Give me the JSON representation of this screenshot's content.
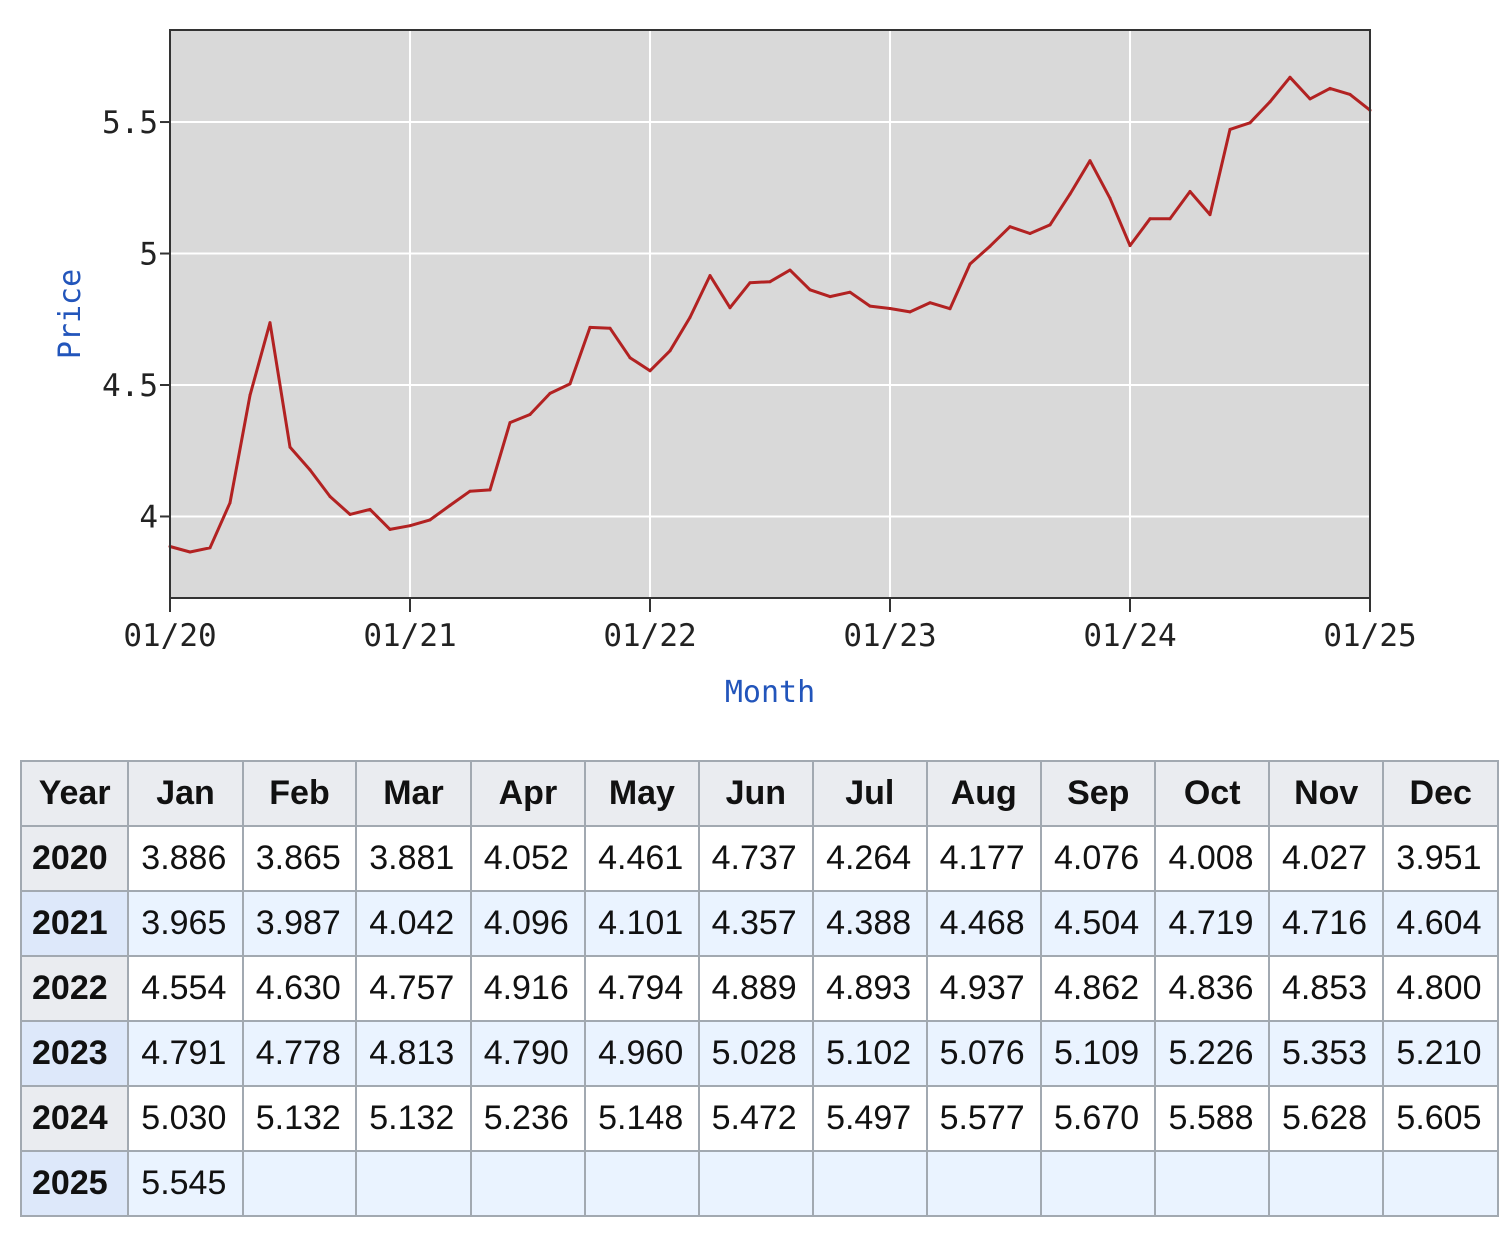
{
  "chart_data": {
    "type": "line",
    "xlabel": "Month",
    "ylabel": "Price",
    "x_tick_labels": [
      "01/20",
      "01/21",
      "01/22",
      "01/23",
      "01/24",
      "01/25"
    ],
    "y_tick_labels": [
      "4",
      "4.5",
      "5",
      "5.5"
    ],
    "y_ticks": [
      4,
      4.5,
      5,
      5.5
    ],
    "ylim": [
      3.69,
      5.85
    ],
    "xlim": [
      "2020-01",
      "2025-01"
    ],
    "grid": true,
    "line_color": "#b22222",
    "plot_background": "#d9d9d9",
    "series": [
      {
        "x": [
          "2020-01",
          "2020-02",
          "2020-03",
          "2020-04",
          "2020-05",
          "2020-06",
          "2020-07",
          "2020-08",
          "2020-09",
          "2020-10",
          "2020-11",
          "2020-12",
          "2021-01",
          "2021-02",
          "2021-03",
          "2021-04",
          "2021-05",
          "2021-06",
          "2021-07",
          "2021-08",
          "2021-09",
          "2021-10",
          "2021-11",
          "2021-12",
          "2022-01",
          "2022-02",
          "2022-03",
          "2022-04",
          "2022-05",
          "2022-06",
          "2022-07",
          "2022-08",
          "2022-09",
          "2022-10",
          "2022-11",
          "2022-12",
          "2023-01",
          "2023-02",
          "2023-03",
          "2023-04",
          "2023-05",
          "2023-06",
          "2023-07",
          "2023-08",
          "2023-09",
          "2023-10",
          "2023-11",
          "2023-12",
          "2024-01",
          "2024-02",
          "2024-03",
          "2024-04",
          "2024-05",
          "2024-06",
          "2024-07",
          "2024-08",
          "2024-09",
          "2024-10",
          "2024-11",
          "2024-12",
          "2025-01"
        ],
        "values": [
          3.886,
          3.865,
          3.881,
          4.052,
          4.461,
          4.737,
          4.264,
          4.177,
          4.076,
          4.008,
          4.027,
          3.951,
          3.965,
          3.987,
          4.042,
          4.096,
          4.101,
          4.357,
          4.388,
          4.468,
          4.504,
          4.719,
          4.716,
          4.604,
          4.554,
          4.63,
          4.757,
          4.916,
          4.794,
          4.889,
          4.893,
          4.937,
          4.862,
          4.836,
          4.853,
          4.8,
          4.791,
          4.778,
          4.813,
          4.79,
          4.96,
          5.028,
          5.102,
          5.076,
          5.109,
          5.226,
          5.353,
          5.21,
          5.03,
          5.132,
          5.132,
          5.236,
          5.148,
          5.472,
          5.497,
          5.577,
          5.67,
          5.588,
          5.628,
          5.605,
          5.545
        ]
      }
    ]
  },
  "table": {
    "headers": [
      "Year",
      "Jan",
      "Feb",
      "Mar",
      "Apr",
      "May",
      "Jun",
      "Jul",
      "Aug",
      "Sep",
      "Oct",
      "Nov",
      "Dec"
    ],
    "rows": [
      {
        "year": "2020",
        "values": [
          "3.886",
          "3.865",
          "3.881",
          "4.052",
          "4.461",
          "4.737",
          "4.264",
          "4.177",
          "4.076",
          "4.008",
          "4.027",
          "3.951"
        ]
      },
      {
        "year": "2021",
        "values": [
          "3.965",
          "3.987",
          "4.042",
          "4.096",
          "4.101",
          "4.357",
          "4.388",
          "4.468",
          "4.504",
          "4.719",
          "4.716",
          "4.604"
        ]
      },
      {
        "year": "2022",
        "values": [
          "4.554",
          "4.630",
          "4.757",
          "4.916",
          "4.794",
          "4.889",
          "4.893",
          "4.937",
          "4.862",
          "4.836",
          "4.853",
          "4.800"
        ]
      },
      {
        "year": "2023",
        "values": [
          "4.791",
          "4.778",
          "4.813",
          "4.790",
          "4.960",
          "5.028",
          "5.102",
          "5.076",
          "5.109",
          "5.226",
          "5.353",
          "5.210"
        ]
      },
      {
        "year": "2024",
        "values": [
          "5.030",
          "5.132",
          "5.132",
          "5.236",
          "5.148",
          "5.472",
          "5.497",
          "5.577",
          "5.670",
          "5.588",
          "5.628",
          "5.605"
        ]
      },
      {
        "year": "2025",
        "values": [
          "5.545",
          "",
          "",
          "",
          "",
          "",
          "",
          "",
          "",
          "",
          "",
          ""
        ]
      }
    ]
  }
}
